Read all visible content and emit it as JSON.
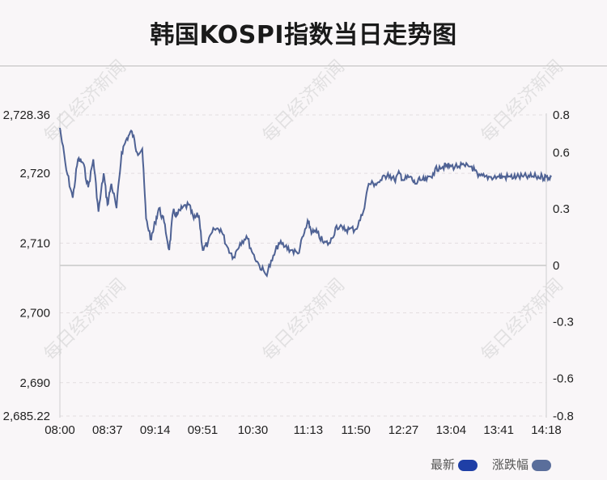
{
  "title": "韩国KOSPI指数当日走势图",
  "watermark": "每日经济新闻",
  "legend": [
    {
      "label": "最新",
      "color": "#1f3fa6"
    },
    {
      "label": "涨跌幅",
      "color": "#5a6e9b"
    }
  ],
  "colors": {
    "line": "#4f6294",
    "baseline": "#c8c8c8",
    "grid": "#e3dde0"
  },
  "chart_data": {
    "type": "line",
    "x_ticks": [
      "08:00",
      "08:37",
      "09:14",
      "09:51",
      "10:30",
      "11:13",
      "11:50",
      "12:27",
      "13:04",
      "13:41",
      "14:18"
    ],
    "y_left_ticks": [
      "2,728.36",
      "2,720",
      "2,710",
      "2,700",
      "2,690",
      "2,685.22"
    ],
    "y_right_ticks": [
      "0.8",
      "0.6",
      "0.3",
      "0",
      "-0.3",
      "-0.6",
      "-0.8"
    ],
    "ylim": [
      2685.22,
      2728.36
    ],
    "y_right_lim": [
      -0.8,
      0.8
    ],
    "baseline": 2706.8,
    "series": [
      {
        "x": [
          "08:00",
          "08:05",
          "08:10",
          "08:14",
          "08:18",
          "08:22",
          "08:26",
          "08:30",
          "08:34",
          "08:37",
          "08:40",
          "08:44",
          "08:48",
          "08:52",
          "08:56",
          "09:00",
          "09:04",
          "09:07",
          "09:11",
          "09:14",
          "09:17",
          "09:21",
          "09:25",
          "09:28",
          "09:31",
          "09:35",
          "09:40",
          "09:44",
          "09:48",
          "09:51",
          "09:55",
          "10:00",
          "10:05",
          "10:10",
          "10:15",
          "10:20",
          "10:25",
          "10:30",
          "10:35",
          "10:40",
          "10:45",
          "10:50",
          "10:55",
          "11:00",
          "11:05",
          "11:10",
          "11:13",
          "11:16",
          "11:20",
          "11:25",
          "11:30",
          "11:35",
          "11:40",
          "11:45",
          "11:50",
          "11:55",
          "12:00",
          "12:05",
          "12:10",
          "12:15",
          "12:20",
          "12:24",
          "12:27",
          "12:32",
          "12:36",
          "12:40",
          "12:45",
          "12:50",
          "12:55",
          "13:00",
          "13:04",
          "13:10",
          "13:15",
          "13:20",
          "13:25",
          "13:30",
          "13:35",
          "13:41",
          "13:45",
          "13:50",
          "13:55",
          "14:00",
          "14:05",
          "14:10",
          "14:15",
          "14:18",
          "14:22"
        ],
        "values": [
          2726.5,
          2720.5,
          2716.5,
          2722,
          2721.5,
          2718,
          2722,
          2714.5,
          2720,
          2715.5,
          2718.5,
          2715,
          2723,
          2725,
          2726,
          2723,
          2723.5,
          2713.5,
          2710.5,
          2713,
          2715,
          2713,
          2709,
          2714.5,
          2714,
          2715,
          2715.5,
          2713.5,
          2714,
          2709,
          2710,
          2712,
          2712,
          2709.5,
          2708,
          2710,
          2711,
          2708.5,
          2706.8,
          2705.5,
          2707.5,
          2710,
          2709.5,
          2709,
          2708.5,
          2711.5,
          2713,
          2711.5,
          2711.5,
          2710,
          2710,
          2712.5,
          2712,
          2712,
          2712,
          2714,
          2718.5,
          2718.5,
          2719,
          2720,
          2719,
          2720,
          2719,
          2719.5,
          2718.5,
          2719,
          2719,
          2720,
          2721,
          2721,
          2721,
          2721,
          2721,
          2721,
          2719.5,
          2719.5,
          2719.5,
          2719.5,
          2719.5,
          2719.5,
          2719.5,
          2719.5,
          2719.5,
          2719.5,
          2719.5,
          2719.5,
          2719.5
        ]
      }
    ]
  }
}
